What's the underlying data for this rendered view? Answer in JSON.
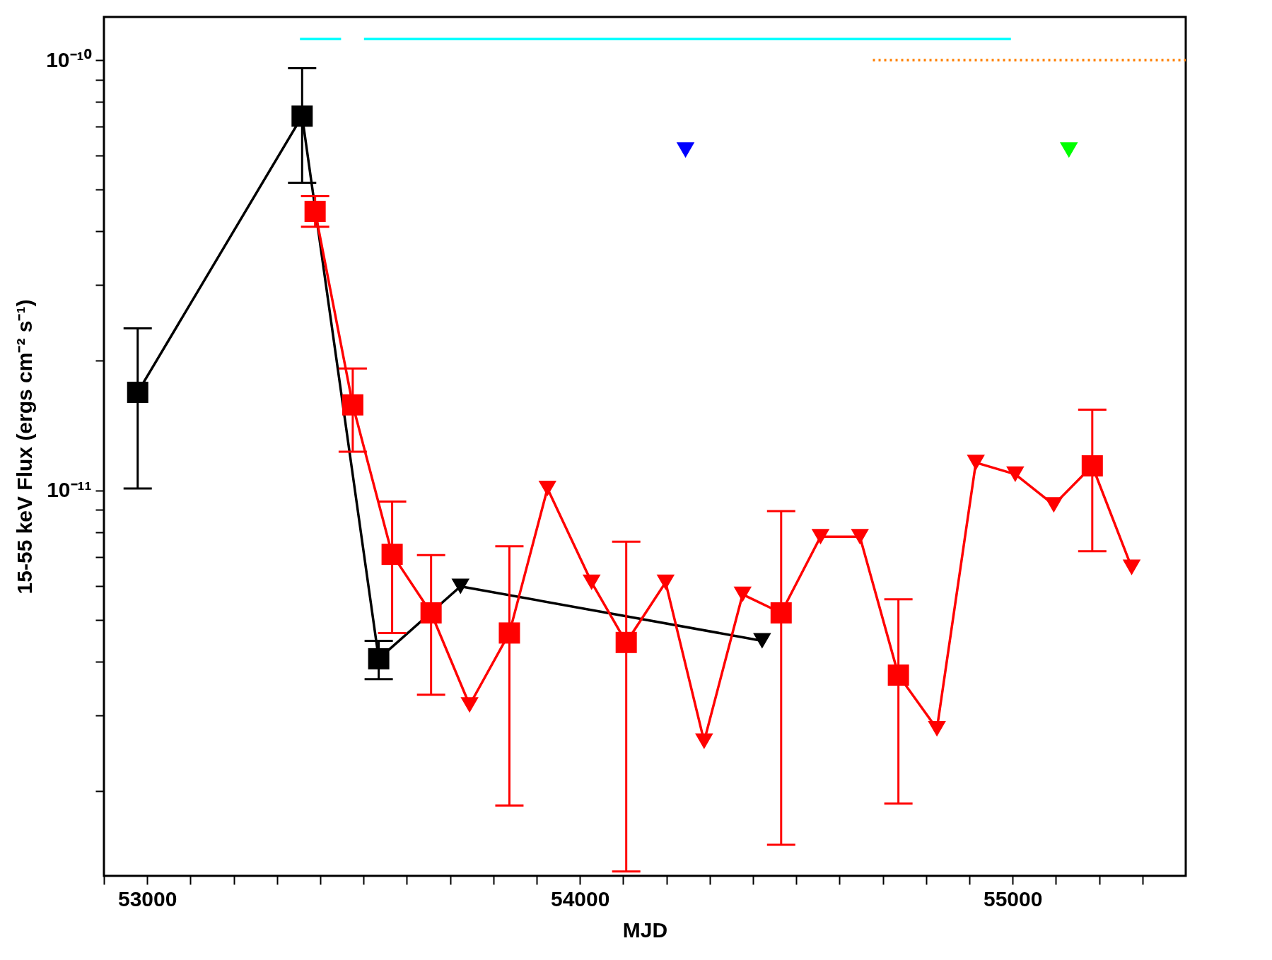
{
  "chart_data": {
    "type": "line",
    "xlabel": "MJD",
    "ylabel": "15-55 keV Flux (ergs cm⁻² s⁻¹)",
    "log": "y",
    "grid": false,
    "xlim": [
      52900,
      55400
    ],
    "ylim": [
      1.27e-12,
      1.26e-10
    ],
    "xticks": [
      {
        "value": 52900,
        "label": null
      },
      53000,
      {
        "value": 53100,
        "label": null
      },
      {
        "value": 53200,
        "label": null
      },
      {
        "value": 53300,
        "label": null
      },
      {
        "value": 53400,
        "label": null
      },
      {
        "value": 53500,
        "label": null
      },
      {
        "value": 53600,
        "label": null
      },
      {
        "value": 53700,
        "label": null
      },
      {
        "value": 53800,
        "label": null
      },
      {
        "value": 53900,
        "label": null
      },
      54000,
      {
        "value": 54100,
        "label": null
      },
      {
        "value": 54200,
        "label": null
      },
      {
        "value": 54300,
        "label": null
      },
      {
        "value": 54400,
        "label": null
      },
      {
        "value": 54500,
        "label": null
      },
      {
        "value": 54600,
        "label": null
      },
      {
        "value": 54700,
        "label": null
      },
      {
        "value": 54800,
        "label": null
      },
      {
        "value": 54900,
        "label": null
      },
      55000,
      {
        "value": 55100,
        "label": null
      },
      {
        "value": 55200,
        "label": null
      },
      {
        "value": 55300,
        "label": null
      }
    ],
    "yticks": [
      {
        "value": 2e-12,
        "label": null
      },
      {
        "value": 3e-12,
        "label": null
      },
      {
        "value": 4e-12,
        "label": null
      },
      {
        "value": 5e-12,
        "label": null
      },
      {
        "value": 6e-12,
        "label": null
      },
      {
        "value": 7e-12,
        "label": null
      },
      {
        "value": 8e-12,
        "label": null
      },
      {
        "value": 9e-12,
        "label": null
      },
      {
        "value": 1e-11,
        "label": "10⁻¹¹"
      },
      {
        "value": 2e-11,
        "label": null
      },
      {
        "value": 3e-11,
        "label": null
      },
      {
        "value": 4e-11,
        "label": null
      },
      {
        "value": 5e-11,
        "label": null
      },
      {
        "value": 6e-11,
        "label": null
      },
      {
        "value": 7e-11,
        "label": null
      },
      {
        "value": 8e-11,
        "label": null
      },
      {
        "value": 9e-11,
        "label": null
      },
      {
        "value": 1e-10,
        "label": "10⁻¹⁰"
      }
    ],
    "series": [
      {
        "color": "#000000",
        "marker": "none",
        "x": [
          52978,
          53358,
          53535,
          53724,
          54421
        ],
        "values": [
          1.69e-11,
          7.41e-11,
          4.06e-12,
          5.98e-12,
          4.47e-12
        ]
      },
      {
        "type": "scatter",
        "color": "#000000",
        "marker": "square",
        "x": [
          52978,
          53358,
          53535
        ],
        "values": [
          1.69e-11,
          7.41e-11,
          4.06e-12
        ],
        "errors": [
          [
            1.01e-11,
            2.38e-11
          ],
          [
            5.19e-11,
            9.58e-11
          ],
          [
            3.64e-12,
            4.47e-12
          ]
        ]
      },
      {
        "type": "scatter",
        "color": "#000000",
        "marker": "triangle",
        "x": [
          53724,
          54421
        ],
        "values": [
          5.98e-12,
          4.47e-12
        ]
      },
      {
        "color": "#ff0000",
        "marker": "none",
        "x": [
          53388,
          53475,
          53566,
          53656,
          53745,
          53837,
          53925,
          54027,
          54107,
          54198,
          54287,
          54376,
          54465,
          54556,
          54647,
          54736,
          54825,
          54915,
          55006,
          55095,
          55184,
          55275
        ],
        "values": [
          4.45e-11,
          1.58e-11,
          7.1e-12,
          5.19e-12,
          3.17e-12,
          4.66e-12,
          1.01e-11,
          6.11e-12,
          4.43e-12,
          6.11e-12,
          2.61e-12,
          5.73e-12,
          5.19e-12,
          7.8e-12,
          7.8e-12,
          3.72e-12,
          2.79e-12,
          1.16e-11,
          1.09e-11,
          9.25e-12,
          1.14e-11,
          6.62e-12
        ]
      },
      {
        "type": "scatter",
        "color": "#ff0000",
        "marker": "square",
        "x": [
          53388,
          53475,
          53566,
          53656,
          53837,
          54107,
          54465,
          54736,
          55184
        ],
        "values": [
          4.45e-11,
          1.58e-11,
          7.1e-12,
          5.19e-12,
          4.66e-12,
          4.43e-12,
          5.19e-12,
          3.72e-12,
          1.14e-11
        ],
        "errors": [
          [
            4.1e-11,
            4.83e-11
          ],
          [
            1.23e-11,
            1.92e-11
          ],
          [
            4.66e-12,
            9.42e-12
          ],
          [
            3.35e-12,
            7.07e-12
          ],
          [
            1.85e-12,
            7.41e-12
          ],
          [
            1.3e-12,
            7.6e-12
          ],
          [
            1.5e-12,
            8.95e-12
          ],
          [
            1.87e-12,
            5.58e-12
          ],
          [
            7.22e-12,
            1.54e-11
          ]
        ]
      },
      {
        "type": "scatter",
        "color": "#ff0000",
        "marker": "triangle",
        "x": [
          53745,
          53925,
          54027,
          54198,
          54287,
          54376,
          54556,
          54647,
          54825,
          54915,
          55006,
          55095,
          55275
        ],
        "values": [
          3.17e-12,
          1.01e-11,
          6.11e-12,
          6.11e-12,
          2.61e-12,
          5.73e-12,
          7.8e-12,
          7.8e-12,
          2.79e-12,
          1.16e-11,
          1.09e-11,
          9.25e-12,
          6.62e-12
        ]
      },
      {
        "type": "scatter",
        "color": "#0000ff",
        "marker": "triangle",
        "x": [
          54244
        ],
        "values": [
          6.18e-11
        ]
      },
      {
        "type": "scatter",
        "color": "#00ff00",
        "marker": "triangle",
        "x": [
          55130
        ],
        "values": [
          6.18e-11
        ]
      },
      {
        "color": "#00ffff",
        "marker": "none",
        "x": [
          53353,
          53448,
          53475,
          53501,
          54996
        ],
        "values": [
          1.12e-10,
          1.12e-10,
          null,
          1.12e-10,
          1.12e-10
        ]
      },
      {
        "color": "#ff7f00",
        "marker": "none",
        "line_style": "dotted",
        "x": [
          54677,
          55400
        ],
        "values": [
          1e-10,
          1e-10
        ]
      }
    ]
  }
}
